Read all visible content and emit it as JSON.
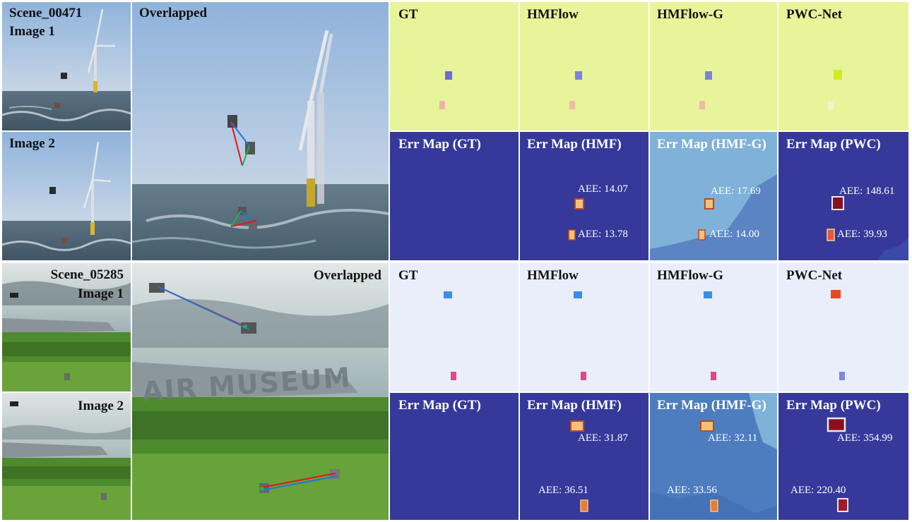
{
  "figure": {
    "rows": [
      {
        "scene_label": "Scene_00471",
        "image1_label": "Image 1",
        "image2_label": "Image 2",
        "overlapped_label": "Overlapped",
        "flow_panels": [
          {
            "label": "GT",
            "bg": "#e8f49a"
          },
          {
            "label": "HMFlow",
            "bg": "#e8f49a"
          },
          {
            "label": "HMFlow-G",
            "bg": "#e8f49a"
          },
          {
            "label": "PWC-Net",
            "bg": "#e8f49a"
          }
        ],
        "err_panels": [
          {
            "label": "Err Map (GT)",
            "bg": "#36399a",
            "aee": []
          },
          {
            "label": "Err Map (HMF)",
            "bg": "#36399a",
            "aee": [
              "AEE: 14.07",
              "AEE: 13.78"
            ]
          },
          {
            "label": "Err Map (HMF-G)",
            "bg": "#7fb1d9",
            "aee": [
              "AEE: 17.69",
              "AEE: 14.00"
            ]
          },
          {
            "label": "Err Map (PWC)",
            "bg": "#36399a",
            "aee": [
              "AEE: 148.61",
              "AEE: 39.93"
            ]
          }
        ]
      },
      {
        "scene_label": "Scene_05285",
        "image1_label": "Image 1",
        "image2_label": "Image 2",
        "overlapped_label": "Overlapped",
        "scene_text": "AIR MUSEUM",
        "flow_panels": [
          {
            "label": "GT",
            "bg": "#eaeefb"
          },
          {
            "label": "HMFlow",
            "bg": "#eaeefb"
          },
          {
            "label": "HMFlow-G",
            "bg": "#eaeefb"
          },
          {
            "label": "PWC-Net",
            "bg": "#eaeefb"
          }
        ],
        "err_panels": [
          {
            "label": "Err Map (GT)",
            "bg": "#36399a",
            "aee": []
          },
          {
            "label": "Err Map (HMF)",
            "bg": "#36399a",
            "aee": [
              "AEE: 31.87",
              "AEE: 36.51"
            ]
          },
          {
            "label": "Err Map (HMF-G)",
            "bg": "#4d7dbf",
            "aee": [
              "AEE: 32.11",
              "AEE: 33.56"
            ]
          },
          {
            "label": "Err Map (PWC)",
            "bg": "#36399a",
            "aee": [
              "AEE: 354.99",
              "AEE: 220.40"
            ]
          }
        ]
      }
    ]
  }
}
